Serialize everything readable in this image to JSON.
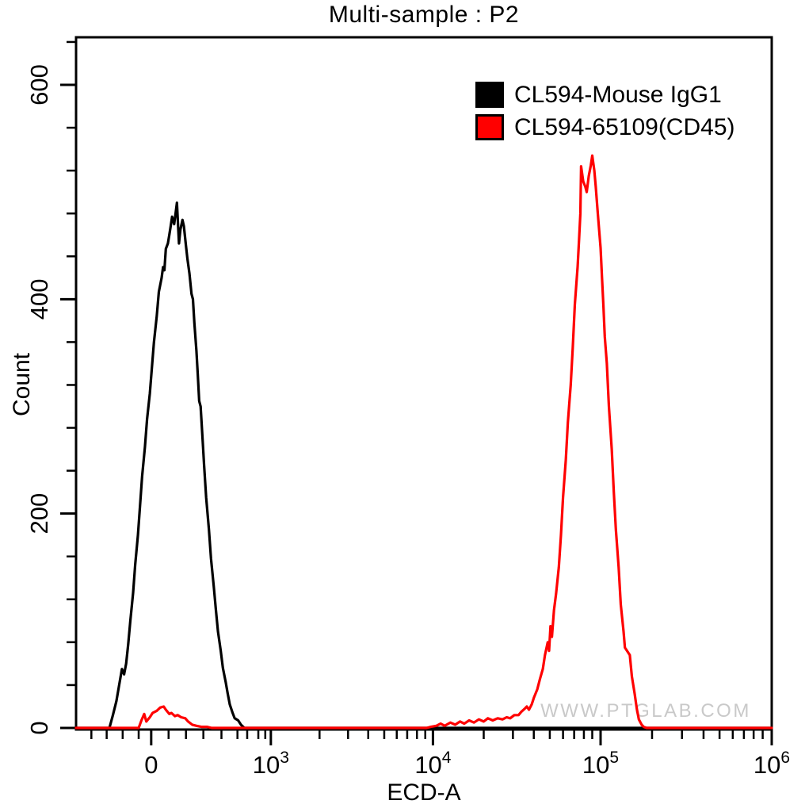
{
  "window": {
    "title": "Multi-sample : P2"
  },
  "watermark": {
    "text": "WWW.PTGLAB.COM",
    "color": "#c9c9c9"
  },
  "chart_data": {
    "type": "line",
    "subtype": "flow-cytometry-histogram",
    "title": "Multi-sample : P2",
    "xlabel": "ECD-A",
    "ylabel": "Count",
    "x_scale": "biexponential-log (logicle), u = fraction of axis width",
    "ylim": [
      0,
      644
    ],
    "grid": "off",
    "legend_position": "top-right",
    "y_major_ticks": [
      0,
      200,
      400,
      600
    ],
    "y_minor_step": 40,
    "x_major_ticks": [
      {
        "label": "0",
        "u": 0.108
      },
      {
        "label": "10^3",
        "u": 0.28
      },
      {
        "label": "10^4",
        "u": 0.513
      },
      {
        "label": "10^5",
        "u": 0.754
      },
      {
        "label": "10^6",
        "u": 1.0
      }
    ],
    "x_minor_ticks_u": [
      0.022,
      0.044,
      0.067,
      0.09,
      0.133,
      0.158,
      0.183,
      0.209,
      0.232,
      0.246,
      0.262,
      0.272,
      0.35,
      0.391,
      0.42,
      0.443,
      0.461,
      0.476,
      0.49,
      0.502,
      0.586,
      0.628,
      0.658,
      0.681,
      0.7,
      0.716,
      0.73,
      0.742,
      0.828,
      0.871,
      0.902,
      0.925,
      0.944,
      0.96,
      0.974,
      0.987
    ],
    "series": [
      {
        "name": "CL594-Mouse IgG1",
        "color": "#000000",
        "peak": {
          "approx_x": "~2x10^2 (near 0)",
          "count": 490
        },
        "points": [
          [
            0.0,
            0
          ],
          [
            0.048,
            0
          ],
          [
            0.053,
            12
          ],
          [
            0.058,
            25
          ],
          [
            0.062,
            40
          ],
          [
            0.066,
            55
          ],
          [
            0.069,
            50
          ],
          [
            0.072,
            60
          ],
          [
            0.075,
            78
          ],
          [
            0.078,
            100
          ],
          [
            0.082,
            126
          ],
          [
            0.085,
            152
          ],
          [
            0.089,
            180
          ],
          [
            0.092,
            208
          ],
          [
            0.095,
            235
          ],
          [
            0.099,
            262
          ],
          [
            0.102,
            288
          ],
          [
            0.106,
            312
          ],
          [
            0.109,
            336
          ],
          [
            0.112,
            360
          ],
          [
            0.116,
            384
          ],
          [
            0.119,
            407
          ],
          [
            0.123,
            420
          ],
          [
            0.125,
            430
          ],
          [
            0.127,
            427
          ],
          [
            0.129,
            447
          ],
          [
            0.132,
            452
          ],
          [
            0.134,
            460
          ],
          [
            0.136,
            468
          ],
          [
            0.138,
            477
          ],
          [
            0.141,
            470
          ],
          [
            0.143,
            480
          ],
          [
            0.145,
            490
          ],
          [
            0.148,
            452
          ],
          [
            0.15,
            465
          ],
          [
            0.153,
            474
          ],
          [
            0.155,
            468
          ],
          [
            0.158,
            450
          ],
          [
            0.16,
            438
          ],
          [
            0.163,
            424
          ],
          [
            0.166,
            405
          ],
          [
            0.168,
            400
          ],
          [
            0.17,
            378
          ],
          [
            0.173,
            352
          ],
          [
            0.175,
            330
          ],
          [
            0.177,
            305
          ],
          [
            0.179,
            300
          ],
          [
            0.182,
            268
          ],
          [
            0.184,
            245
          ],
          [
            0.187,
            215
          ],
          [
            0.191,
            185
          ],
          [
            0.194,
            158
          ],
          [
            0.198,
            132
          ],
          [
            0.201,
            110
          ],
          [
            0.204,
            90
          ],
          [
            0.208,
            72
          ],
          [
            0.211,
            56
          ],
          [
            0.215,
            43
          ],
          [
            0.218,
            32
          ],
          [
            0.221,
            22
          ],
          [
            0.225,
            14
          ],
          [
            0.228,
            9
          ],
          [
            0.233,
            7
          ],
          [
            0.237,
            3
          ],
          [
            0.242,
            0
          ],
          [
            1.0,
            0
          ]
        ]
      },
      {
        "name": "CL594-65109(CD45)",
        "color": "#ff0000",
        "peak": {
          "approx_x": "~9x10^4",
          "count": 534
        },
        "points": [
          [
            0.0,
            0
          ],
          [
            0.09,
            0
          ],
          [
            0.094,
            7
          ],
          [
            0.098,
            13
          ],
          [
            0.101,
            6
          ],
          [
            0.106,
            10
          ],
          [
            0.11,
            14
          ],
          [
            0.116,
            16
          ],
          [
            0.121,
            19
          ],
          [
            0.126,
            20
          ],
          [
            0.129,
            17
          ],
          [
            0.134,
            13
          ],
          [
            0.137,
            14
          ],
          [
            0.142,
            11
          ],
          [
            0.146,
            12
          ],
          [
            0.151,
            10
          ],
          [
            0.157,
            9
          ],
          [
            0.161,
            6
          ],
          [
            0.167,
            3
          ],
          [
            0.173,
            2
          ],
          [
            0.18,
            1
          ],
          [
            0.188,
            1
          ],
          [
            0.195,
            0
          ],
          [
            0.504,
            0
          ],
          [
            0.51,
            1
          ],
          [
            0.518,
            2
          ],
          [
            0.524,
            4
          ],
          [
            0.53,
            2
          ],
          [
            0.538,
            5
          ],
          [
            0.545,
            3
          ],
          [
            0.552,
            6
          ],
          [
            0.558,
            4
          ],
          [
            0.565,
            7
          ],
          [
            0.572,
            5
          ],
          [
            0.579,
            8
          ],
          [
            0.586,
            6
          ],
          [
            0.592,
            9
          ],
          [
            0.599,
            7
          ],
          [
            0.606,
            9
          ],
          [
            0.613,
            8
          ],
          [
            0.619,
            10
          ],
          [
            0.624,
            9
          ],
          [
            0.63,
            12
          ],
          [
            0.636,
            12
          ],
          [
            0.64,
            15
          ],
          [
            0.645,
            18
          ],
          [
            0.648,
            20
          ],
          [
            0.651,
            17
          ],
          [
            0.655,
            22
          ],
          [
            0.658,
            28
          ],
          [
            0.663,
            36
          ],
          [
            0.667,
            46
          ],
          [
            0.671,
            55
          ],
          [
            0.674,
            68
          ],
          [
            0.678,
            80
          ],
          [
            0.68,
            72
          ],
          [
            0.682,
            95
          ],
          [
            0.684,
            85
          ],
          [
            0.687,
            110
          ],
          [
            0.69,
            125
          ],
          [
            0.694,
            150
          ],
          [
            0.697,
            180
          ],
          [
            0.7,
            215
          ],
          [
            0.704,
            250
          ],
          [
            0.707,
            285
          ],
          [
            0.711,
            320
          ],
          [
            0.714,
            355
          ],
          [
            0.717,
            395
          ],
          [
            0.721,
            430
          ],
          [
            0.723,
            455
          ],
          [
            0.725,
            480
          ],
          [
            0.726,
            524
          ],
          [
            0.729,
            510
          ],
          [
            0.732,
            505
          ],
          [
            0.734,
            500
          ],
          [
            0.737,
            515
          ],
          [
            0.74,
            525
          ],
          [
            0.742,
            534
          ],
          [
            0.745,
            520
          ],
          [
            0.747,
            505
          ],
          [
            0.75,
            480
          ],
          [
            0.754,
            448
          ],
          [
            0.756,
            420
          ],
          [
            0.758,
            395
          ],
          [
            0.76,
            365
          ],
          [
            0.763,
            340
          ],
          [
            0.766,
            300
          ],
          [
            0.77,
            260
          ],
          [
            0.773,
            220
          ],
          [
            0.776,
            185
          ],
          [
            0.78,
            150
          ],
          [
            0.783,
            115
          ],
          [
            0.787,
            90
          ],
          [
            0.789,
            75
          ],
          [
            0.792,
            72
          ],
          [
            0.796,
            68
          ],
          [
            0.799,
            48
          ],
          [
            0.803,
            32
          ],
          [
            0.806,
            18
          ],
          [
            0.809,
            8
          ],
          [
            0.813,
            3
          ],
          [
            0.816,
            1
          ],
          [
            0.82,
            0
          ],
          [
            1.0,
            0
          ]
        ]
      }
    ]
  }
}
